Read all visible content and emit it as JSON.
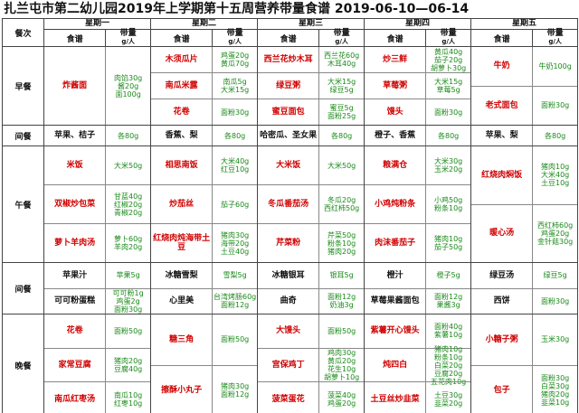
{
  "title": "扎兰屯市第二幼儿园2019年上学期第十五周营养带量食谱 2019-06-10—06-14",
  "header": {
    "meal_label": "餐次",
    "days": [
      "星期一",
      "星期二",
      "星期三",
      "星期四",
      "星期五"
    ],
    "recipe_label": "食谱",
    "amount_label": "带量",
    "unit": "g/人"
  },
  "sections": [
    {
      "label": "早餐",
      "days": [
        [
          {
            "name": "炸酱面",
            "amounts": [
              "肉馅30g",
              "酱20g",
              "面100g"
            ]
          }
        ],
        [
          {
            "name": "木须瓜片",
            "amounts": [
              "鸡蛋20g",
              "黄瓜70g"
            ]
          },
          {
            "name": "南瓜米露",
            "amounts": [
              "南瓜5g",
              "大米15g"
            ]
          },
          {
            "name": "花卷",
            "amounts": [
              "面粉30g"
            ]
          }
        ],
        [
          {
            "name": "西兰花炒木耳",
            "amounts": [
              "西兰花60g",
              "木耳40g"
            ]
          },
          {
            "name": "绿豆粥",
            "amounts": [
              "大米15g",
              "绿豆5g"
            ]
          },
          {
            "name": "蜜豆面包",
            "amounts": [
              "蜜豆5g",
              "面粉25g"
            ]
          }
        ],
        [
          {
            "name": "炒三鲜",
            "amounts": [
              "黄瓜40g",
              "茄子20g",
              "胡萝卜30g"
            ]
          },
          {
            "name": "草莓粥",
            "amounts": [
              "大米15g",
              "草莓5g"
            ]
          },
          {
            "name": "馒头",
            "amounts": [
              "面粉30g"
            ]
          }
        ],
        [
          {
            "name": "牛奶",
            "amounts": [
              "牛奶100g"
            ]
          },
          {
            "name": "老式面包",
            "amounts": [
              "面粉30g"
            ]
          }
        ]
      ]
    },
    {
      "label": "间餐",
      "days": [
        [
          {
            "name": "苹果、桔子",
            "amounts": [
              "各80g"
            ]
          }
        ],
        [
          {
            "name": "香蕉、梨",
            "amounts": [
              "各80g"
            ]
          }
        ],
        [
          {
            "name": "哈密瓜、圣女果",
            "amounts": [
              "各80g"
            ]
          }
        ],
        [
          {
            "name": "橙子、香蕉",
            "amounts": [
              "各80g"
            ]
          }
        ],
        [
          {
            "name": "苹果、梨",
            "amounts": [
              "各80g"
            ]
          }
        ]
      ]
    },
    {
      "label": "午餐",
      "days": [
        [
          {
            "name": "米饭",
            "amounts": [
              "大米50g"
            ]
          },
          {
            "name": "双椒炒包菜",
            "amounts": [
              "甘蓝40g",
              "红椒20g",
              "青椒20g"
            ]
          },
          {
            "name": "萝卜羊肉汤",
            "amounts": [
              "萝卜60g",
              "羊肉20g"
            ]
          }
        ],
        [
          {
            "name": "相思南饭",
            "amounts": [
              "大米40g",
              "红豆10g"
            ]
          },
          {
            "name": "炒茄丝",
            "amounts": [
              "茄子60g"
            ]
          },
          {
            "name": "红烧肉炖海带土豆",
            "amounts": [
              "猪肉30g",
              "海带20g",
              "土豆40g"
            ]
          }
        ],
        [
          {
            "name": "大米饭",
            "amounts": [
              "大米50g"
            ]
          },
          {
            "name": "冬瓜番茄汤",
            "amounts": [
              "冬瓜20g",
              "西红柿50g"
            ]
          },
          {
            "name": "芹菜粉",
            "amounts": [
              "芹菜50g",
              "粉条10g",
              "猪肉20g"
            ]
          }
        ],
        [
          {
            "name": "粮满仓",
            "amounts": [
              "大米30g",
              "玉米20g"
            ]
          },
          {
            "name": "小鸡炖粉条",
            "amounts": [
              "小鸡50g",
              "粉条10g"
            ]
          },
          {
            "name": "肉沫番茄子",
            "amounts": [
              "猪肉10g",
              "茄子50g"
            ]
          }
        ],
        [
          {
            "name": "红烧肉焖饭",
            "amounts": [
              "猪肉10g",
              "大米40g",
              "土豆10g"
            ]
          },
          {
            "name": "暖心汤",
            "amounts": [
              "西红柿60g",
              "鸡蛋20g",
              "金针菇30g"
            ]
          }
        ]
      ]
    },
    {
      "label": "间餐",
      "days": [
        [
          {
            "name": "苹果汁",
            "amounts": [
              "苹果5g"
            ]
          },
          {
            "name": "可可粉蛋糕",
            "amounts": [
              "可可粉1g",
              "鸡蛋2g",
              "面粉30g"
            ]
          }
        ],
        [
          {
            "name": "冰糖雪梨",
            "amounts": [
              "雪梨5g"
            ]
          },
          {
            "name": "心里美",
            "amounts": [
              "台湾烤肠60g",
              "面粉12g"
            ]
          }
        ],
        [
          {
            "name": "冰糖银耳",
            "amounts": [
              "银耳5g"
            ]
          },
          {
            "name": "曲奇",
            "amounts": [
              "面粉12g",
              "奶油3g"
            ]
          }
        ],
        [
          {
            "name": "橙汁",
            "amounts": [
              "橙子5g"
            ]
          },
          {
            "name": "草莓果酱面包",
            "amounts": [
              "面粉12g",
              "果酱3g"
            ]
          }
        ],
        [
          {
            "name": "绿豆汤",
            "amounts": [
              "绿豆5g"
            ]
          },
          {
            "name": "西饼",
            "amounts": [
              "面粉30g"
            ]
          }
        ]
      ]
    },
    {
      "label": "晚餐",
      "days": [
        [
          {
            "name": "花卷",
            "amounts": [
              "面粉50g"
            ]
          },
          {
            "name": "家常豆腐",
            "amounts": [
              "猪肉20g",
              "豆腐40g"
            ]
          },
          {
            "name": "南瓜红枣汤",
            "amounts": [
              "南瓜10g",
              "红枣10g"
            ]
          }
        ],
        [
          {
            "name": "糖三角",
            "amounts": [
              "面粉50g"
            ]
          },
          {
            "name": "擦酥小丸子",
            "amounts": [
              "猪肉30g",
              "面粉12g"
            ]
          }
        ],
        [
          {
            "name": "大馒头",
            "amounts": [
              "面粉50g"
            ]
          },
          {
            "name": "宫保鸡丁",
            "amounts": [
              "鸡肉30g",
              "黄瓜20g",
              "花生10g",
              "胡萝卜10g"
            ]
          },
          {
            "name": "菠菜蛋花",
            "amounts": [
              "菠菜40g",
              "鸡蛋20g"
            ]
          }
        ],
        [
          {
            "name": "紫薯开心馒头",
            "amounts": [
              "面粉40g",
              "紫薯10g"
            ]
          },
          {
            "name": "炖四白",
            "amounts": [
              "猪肉10g",
              "粉条10g",
              "白菜20g",
              "豆腐20g",
              "五花肉10g"
            ]
          },
          {
            "name": "土豆丝炒韭菜",
            "amounts": [
              "土豆30g",
              "韭菜20g"
            ]
          }
        ],
        [
          {
            "name": "小糖子粥",
            "amounts": [
              "玉米30g"
            ]
          },
          {
            "name": "包子",
            "amounts": [
              "面粉30g",
              "白菜30g",
              "猪肉20g",
              "韭菜10g"
            ]
          }
        ]
      ]
    }
  ]
}
